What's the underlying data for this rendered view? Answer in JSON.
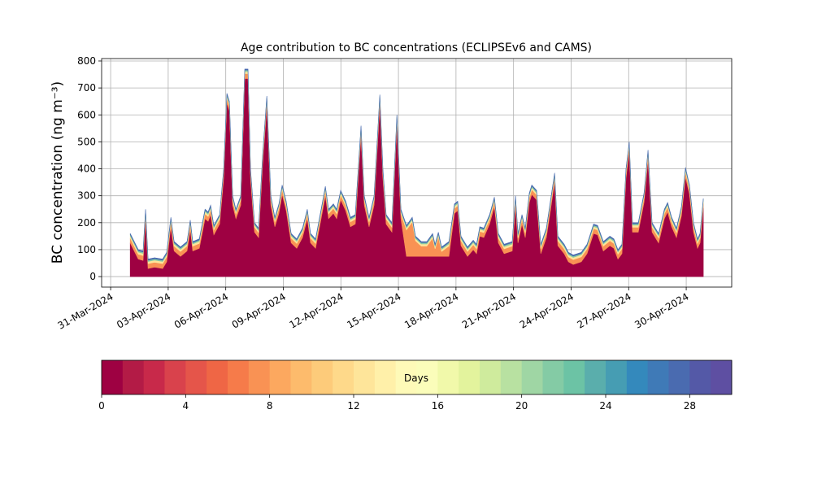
{
  "chart_data": {
    "type": "stacked_area",
    "title": "Age contribution to BC concentrations (ECLIPSEv6 and CAMS)",
    "ylabel": "BC concentration (ng m⁻³)",
    "x": [
      1.02,
      1.44,
      1.69,
      1.82,
      1.95,
      2.29,
      2.71,
      2.92,
      3.14,
      3.31,
      3.64,
      3.98,
      4.15,
      4.28,
      4.62,
      4.92,
      5.08,
      5.21,
      5.38,
      5.68,
      5.89,
      6.06,
      6.19,
      6.36,
      6.53,
      6.78,
      6.99,
      7.16,
      7.29,
      7.5,
      7.71,
      7.92,
      8.14,
      8.35,
      8.56,
      8.77,
      8.94,
      9.15,
      9.41,
      9.7,
      10.0,
      10.25,
      10.42,
      10.68,
      10.97,
      11.19,
      11.36,
      11.61,
      11.78,
      11.99,
      12.25,
      12.5,
      12.75,
      13.05,
      13.22,
      13.47,
      13.73,
      14.03,
      14.19,
      14.36,
      14.66,
      14.92,
      15.13,
      15.42,
      15.72,
      15.89,
      16.19,
      16.48,
      16.78,
      16.91,
      17.08,
      17.25,
      17.63,
      17.92,
      18.09,
      18.26,
      18.6,
      18.9,
      19.07,
      19.24,
      19.45,
      19.75,
      20.0,
      20.21,
      20.51,
      20.93,
      21.1,
      21.23,
      21.44,
      21.61,
      21.82,
      21.95,
      22.2,
      22.42,
      22.71,
      22.92,
      23.14,
      23.31,
      23.64,
      23.86,
      24.11,
      24.53,
      24.83,
      25.17,
      25.38,
      25.68,
      26.02,
      26.23,
      26.44,
      26.65,
      26.86,
      27.03,
      27.2,
      27.5,
      27.8,
      28.01,
      28.22,
      28.56,
      28.86,
      29.03,
      29.24,
      29.49,
      29.75,
      29.96,
      30.17,
      30.38,
      30.59,
      30.72,
      30.89
    ],
    "series": [
      {
        "color": "#9e0142",
        "values": [
          125,
          65,
          60,
          215,
          30,
          35,
          30,
          55,
          185,
          95,
          75,
          95,
          175,
          95,
          105,
          215,
          205,
          230,
          155,
          195,
          365,
          645,
          615,
          265,
          215,
          265,
          735,
          735,
          365,
          165,
          145,
          415,
          635,
          265,
          185,
          235,
          305,
          245,
          125,
          105,
          145,
          215,
          125,
          105,
          215,
          300,
          215,
          235,
          215,
          285,
          245,
          185,
          195,
          525,
          265,
          185,
          265,
          640,
          365,
          195,
          165,
          565,
          215,
          75,
          75,
          75,
          75,
          75,
          75,
          75,
          75,
          75,
          75,
          235,
          245,
          115,
          75,
          100,
          85,
          150,
          145,
          195,
          260,
          125,
          85,
          95,
          265,
          125,
          195,
          145,
          275,
          305,
          285,
          85,
          145,
          245,
          350,
          115,
          85,
          55,
          45,
          55,
          85,
          160,
          155,
          95,
          115,
          105,
          65,
          85,
          365,
          465,
          165,
          165,
          275,
          435,
          165,
          125,
          215,
          240,
          185,
          145,
          225,
          370,
          305,
          165,
          105,
          125,
          255
        ]
      },
      {
        "color": "#f99254",
        "values": [
          18,
          18,
          18,
          18,
          18,
          18,
          18,
          18,
          18,
          18,
          18,
          18,
          18,
          18,
          18,
          18,
          18,
          18,
          18,
          18,
          18,
          18,
          18,
          18,
          18,
          18,
          18,
          18,
          18,
          18,
          18,
          18,
          18,
          18,
          18,
          18,
          18,
          18,
          18,
          18,
          18,
          18,
          18,
          18,
          18,
          18,
          18,
          18,
          18,
          18,
          18,
          18,
          18,
          18,
          18,
          18,
          18,
          18,
          18,
          18,
          18,
          18,
          18,
          98,
          128,
          58,
          38,
          38,
          68,
          28,
          73,
          18,
          38,
          18,
          18,
          18,
          18,
          18,
          18,
          18,
          18,
          18,
          18,
          18,
          18,
          18,
          18,
          18,
          18,
          18,
          18,
          18,
          18,
          18,
          18,
          18,
          18,
          18,
          18,
          18,
          18,
          18,
          18,
          18,
          18,
          18,
          18,
          18,
          18,
          18,
          18,
          18,
          18,
          18,
          18,
          18,
          18,
          18,
          18,
          18,
          18,
          18,
          18,
          18,
          18,
          18,
          18,
          18,
          18
        ]
      },
      {
        "color": "#fee59a",
        "values": [
          8,
          8,
          8,
          8,
          8,
          8,
          8,
          8,
          8,
          8,
          8,
          8,
          8,
          8,
          8,
          8,
          8,
          8,
          8,
          8,
          8,
          8,
          8,
          8,
          8,
          8,
          8,
          8,
          8,
          8,
          8,
          8,
          8,
          8,
          8,
          8,
          8,
          8,
          8,
          8,
          8,
          8,
          8,
          8,
          8,
          8,
          8,
          8,
          8,
          8,
          8,
          8,
          8,
          8,
          8,
          8,
          8,
          8,
          8,
          8,
          8,
          8,
          8,
          8,
          8,
          8,
          8,
          8,
          8,
          8,
          8,
          8,
          8,
          8,
          8,
          8,
          8,
          8,
          8,
          8,
          8,
          8,
          8,
          8,
          8,
          8,
          8,
          8,
          8,
          8,
          8,
          8,
          8,
          8,
          8,
          8,
          8,
          8,
          8,
          8,
          8,
          8,
          8,
          8,
          8,
          8,
          8,
          8,
          8,
          8,
          8,
          8,
          8,
          8,
          8,
          8,
          8,
          8,
          8,
          8,
          8,
          8,
          8,
          8,
          8,
          8,
          8,
          8,
          8
        ]
      },
      {
        "color": "#84cba5",
        "values": [
          5,
          5,
          5,
          5,
          5,
          5,
          5,
          5,
          5,
          5,
          5,
          5,
          5,
          5,
          5,
          5,
          5,
          5,
          5,
          5,
          5,
          5,
          5,
          5,
          5,
          5,
          5,
          5,
          5,
          5,
          5,
          5,
          5,
          5,
          5,
          5,
          5,
          5,
          5,
          5,
          5,
          5,
          5,
          5,
          5,
          5,
          5,
          5,
          5,
          5,
          5,
          5,
          5,
          5,
          5,
          5,
          5,
          5,
          5,
          5,
          5,
          5,
          5,
          5,
          5,
          5,
          5,
          5,
          5,
          5,
          5,
          5,
          5,
          5,
          5,
          5,
          5,
          5,
          5,
          5,
          5,
          5,
          5,
          5,
          5,
          5,
          5,
          5,
          5,
          5,
          5,
          5,
          5,
          5,
          5,
          5,
          5,
          5,
          5,
          5,
          5,
          5,
          5,
          5,
          5,
          5,
          5,
          5,
          5,
          5,
          5,
          5,
          5,
          5,
          5,
          5,
          5,
          5,
          5,
          5,
          5,
          5,
          5,
          5,
          5,
          5,
          5,
          5,
          5
        ]
      },
      {
        "color": "#4a6bb0",
        "values": [
          4,
          4,
          4,
          4,
          4,
          4,
          4,
          4,
          4,
          4,
          4,
          4,
          4,
          4,
          4,
          4,
          4,
          4,
          4,
          4,
          4,
          4,
          4,
          4,
          4,
          4,
          4,
          4,
          4,
          4,
          4,
          4,
          4,
          4,
          4,
          4,
          4,
          4,
          4,
          4,
          4,
          4,
          4,
          4,
          4,
          4,
          4,
          4,
          4,
          4,
          4,
          4,
          4,
          4,
          4,
          4,
          4,
          4,
          4,
          4,
          4,
          4,
          4,
          4,
          4,
          4,
          4,
          4,
          4,
          4,
          4,
          4,
          4,
          4,
          4,
          4,
          4,
          4,
          4,
          4,
          4,
          4,
          4,
          4,
          4,
          4,
          4,
          4,
          4,
          4,
          4,
          4,
          4,
          4,
          4,
          4,
          4,
          4,
          4,
          4,
          4,
          4,
          4,
          4,
          4,
          4,
          4,
          4,
          4,
          4,
          4,
          4,
          4,
          4,
          4,
          4,
          4,
          4,
          4,
          4,
          4,
          4,
          4,
          4,
          4,
          4,
          4,
          4,
          4
        ]
      }
    ],
    "xlim": [
      -0.47,
      32.37
    ],
    "ylim": [
      -39,
      809
    ],
    "xticks": [
      {
        "value": 0,
        "label": "31-Mar-2024"
      },
      {
        "value": 3,
        "label": "03-Apr-2024"
      },
      {
        "value": 6,
        "label": "06-Apr-2024"
      },
      {
        "value": 9,
        "label": "09-Apr-2024"
      },
      {
        "value": 12,
        "label": "12-Apr-2024"
      },
      {
        "value": 15,
        "label": "15-Apr-2024"
      },
      {
        "value": 18,
        "label": "18-Apr-2024"
      },
      {
        "value": 21,
        "label": "21-Apr-2024"
      },
      {
        "value": 24,
        "label": "24-Apr-2024"
      },
      {
        "value": 27,
        "label": "27-Apr-2024"
      },
      {
        "value": 30,
        "label": "30-Apr-2024"
      }
    ],
    "yticks": [
      0,
      100,
      200,
      300,
      400,
      500,
      600,
      700,
      800
    ],
    "grid": true,
    "colorbar": {
      "label": "Days",
      "lim": [
        0,
        30
      ],
      "ticks": [
        0,
        4,
        8,
        12,
        16,
        20,
        24,
        28
      ],
      "colors": [
        "#9e0142",
        "#b31b46",
        "#c8294a",
        "#d9424c",
        "#e5554a",
        "#ef6645",
        "#f67b4a",
        "#f99254",
        "#fca85f",
        "#fdbb6c",
        "#fdcb7a",
        "#fed98a",
        "#fee59a",
        "#fff0a9",
        "#fefab8",
        "#fbfdba",
        "#f1f9aa",
        "#e3f39d",
        "#cfeb9d",
        "#b8e1a1",
        "#9fd6a4",
        "#84cba5",
        "#6cc3a5",
        "#5aaeac",
        "#469db3",
        "#3489bc",
        "#3f7ab7",
        "#4a6bb0",
        "#5459a7",
        "#5e4fa2"
      ]
    }
  }
}
